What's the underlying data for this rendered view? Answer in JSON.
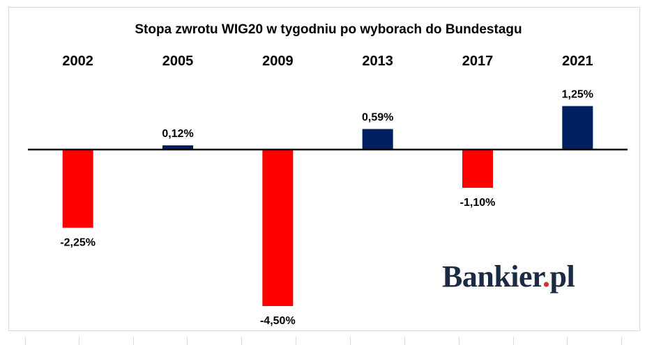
{
  "chart_data": {
    "type": "bar",
    "title": "Stopa zwrotu WIG20 w tygodniu po wyborach do Bundestagu",
    "categories": [
      "2002",
      "2005",
      "2009",
      "2013",
      "2017",
      "2021"
    ],
    "values": [
      -2.25,
      0.12,
      -4.5,
      0.59,
      -1.1,
      1.25
    ],
    "value_labels": [
      "-2,25%",
      "0,12%",
      "-4,50%",
      "0,59%",
      "-1,10%",
      "1,25%"
    ],
    "xlabel": "",
    "ylabel": "",
    "ylim": [
      -4.5,
      1.25
    ],
    "category_labels_position": "top",
    "grid": false,
    "legend": "none",
    "colors": {
      "positive": "#002060",
      "negative": "#ff0000",
      "baseline": "#000000"
    }
  },
  "brand": {
    "name_main": "Bankier",
    "name_dot": ".",
    "name_tld": "pl"
  }
}
